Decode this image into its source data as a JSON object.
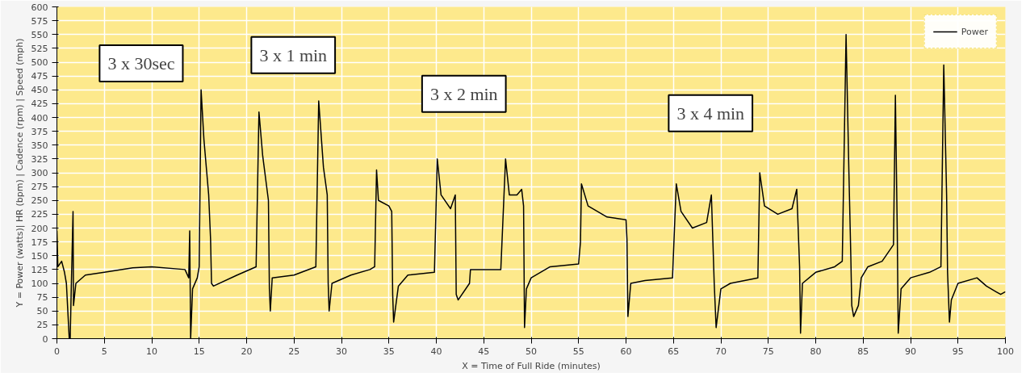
{
  "chart_data": {
    "type": "line",
    "xlabel": "X = Time of Full Ride (minutes)",
    "ylabel": "Y = Power (watts)| HR (bpm) | Cadence (rpm) | Speed (mph)",
    "xlim": [
      0,
      100
    ],
    "ylim": [
      0,
      600
    ],
    "xticks": [
      0,
      5,
      10,
      15,
      20,
      25,
      30,
      35,
      40,
      45,
      50,
      55,
      60,
      65,
      70,
      75,
      80,
      85,
      90,
      95,
      100
    ],
    "yticks": [
      0,
      25,
      50,
      75,
      100,
      125,
      150,
      175,
      200,
      225,
      250,
      275,
      300,
      325,
      350,
      375,
      400,
      425,
      450,
      475,
      500,
      525,
      550,
      575,
      600
    ],
    "grid": true,
    "legend": "top right",
    "marker": "none",
    "line_style": "solid",
    "annotations": [
      "3 x 30sec",
      "3 x 1 min",
      "3 x 2 min",
      "3 x 4 min"
    ],
    "series": [
      {
        "name": "Power",
        "color": "#000000",
        "x": [
          0,
          0.1,
          0.5,
          0.8,
          1.0,
          1.3,
          1.4,
          1.5,
          1.7,
          1.75,
          2.0,
          3,
          5,
          8,
          10,
          13.5,
          13.9,
          14.0,
          14.1,
          14.3,
          14.8,
          15.0,
          15.2,
          15.5,
          15.8,
          16.0,
          16.2,
          16.3,
          16.5,
          19,
          21.0,
          21.3,
          21.7,
          22.3,
          22.4,
          22.5,
          22.7,
          25,
          27.3,
          27.6,
          28.1,
          28.5,
          28.6,
          28.7,
          29,
          31,
          33.0,
          33.5,
          33.7,
          33.9,
          35.0,
          35.3,
          35.4,
          35.5,
          36,
          37,
          39.8,
          40.1,
          40.5,
          41.5,
          42.0,
          42.1,
          42.3,
          43.5,
          43.6,
          46.8,
          47.3,
          47.7,
          48.5,
          49.0,
          49.2,
          49.3,
          49.5,
          50,
          52,
          55.0,
          55.2,
          55.3,
          56,
          58,
          60.0,
          60.1,
          60.2,
          60.5,
          62,
          64.9,
          65.3,
          65.8,
          67,
          68.5,
          69.0,
          69.3,
          69.5,
          70,
          71,
          73.9,
          74.1,
          74.6,
          76,
          77.5,
          78.0,
          78.3,
          78.4,
          78.6,
          80,
          82.0,
          82.8,
          83.2,
          83.5,
          83.7,
          83.8,
          84.0,
          84.5,
          84.8,
          85.5,
          87,
          88.2,
          88.4,
          88.6,
          88.7,
          89.0,
          90,
          92,
          93.2,
          93.5,
          93.8,
          93.9,
          94.1,
          94.3,
          95,
          97,
          98,
          99,
          99.5,
          100
        ],
        "values": [
          195,
          130,
          140,
          120,
          100,
          0,
          0,
          80,
          230,
          60,
          100,
          115,
          120,
          128,
          130,
          125,
          110,
          195,
          0,
          90,
          110,
          130,
          450,
          360,
          300,
          260,
          180,
          100,
          95,
          115,
          130,
          410,
          330,
          250,
          90,
          50,
          110,
          115,
          130,
          430,
          310,
          260,
          100,
          50,
          100,
          115,
          125,
          130,
          305,
          250,
          240,
          230,
          80,
          30,
          95,
          115,
          120,
          325,
          260,
          235,
          260,
          80,
          70,
          100,
          125,
          125,
          325,
          260,
          260,
          270,
          240,
          20,
          90,
          110,
          130,
          135,
          175,
          280,
          240,
          220,
          215,
          180,
          40,
          100,
          105,
          110,
          280,
          230,
          200,
          210,
          260,
          100,
          20,
          90,
          100,
          110,
          300,
          240,
          225,
          235,
          270,
          130,
          10,
          100,
          120,
          130,
          140,
          550,
          300,
          150,
          60,
          40,
          60,
          110,
          130,
          140,
          170,
          440,
          190,
          10,
          90,
          110,
          120,
          130,
          495,
          260,
          120,
          30,
          70,
          100,
          110,
          95,
          85,
          80,
          85
        ]
      }
    ]
  }
}
